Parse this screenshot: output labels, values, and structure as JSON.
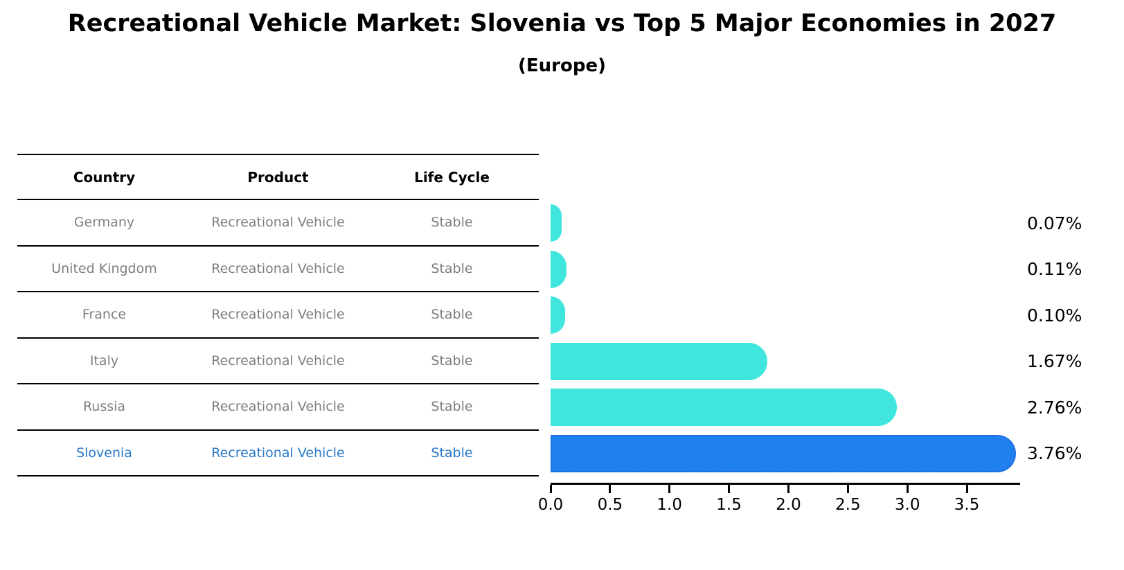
{
  "title": "Recreational Vehicle Market: Slovenia vs Top 5 Major Economies in 2027",
  "subtitle": "(Europe)",
  "table": {
    "headers": [
      "Country",
      "Product",
      "Life Cycle"
    ],
    "rows": [
      {
        "country": "Germany",
        "product": "Recreational Vehicle",
        "life_cycle": "Stable",
        "highlighted": false
      },
      {
        "country": "United Kingdom",
        "product": "Recreational Vehicle",
        "life_cycle": "Stable",
        "highlighted": false
      },
      {
        "country": "France",
        "product": "Recreational Vehicle",
        "life_cycle": "Stable",
        "highlighted": false
      },
      {
        "country": "Italy",
        "product": "Recreational Vehicle",
        "life_cycle": "Stable",
        "highlighted": false
      },
      {
        "country": "Russia",
        "product": "Recreational Vehicle",
        "life_cycle": "Stable",
        "highlighted": false
      },
      {
        "country": "Slovenia",
        "product": "Recreational Vehicle",
        "life_cycle": "Stable",
        "highlighted": true
      }
    ]
  },
  "chart_data": {
    "type": "bar",
    "orientation": "horizontal",
    "title": "Recreational Vehicle Market: Slovenia vs Top 5 Major Economies in 2027",
    "subtitle": "(Europe)",
    "categories": [
      "Germany",
      "United Kingdom",
      "France",
      "Italy",
      "Russia",
      "Slovenia"
    ],
    "values": [
      0.07,
      0.11,
      0.1,
      1.67,
      2.76,
      3.76
    ],
    "value_labels": [
      "0.07%",
      "0.11%",
      "0.10%",
      "1.67%",
      "2.76%",
      "3.76%"
    ],
    "highlight_index": 5,
    "x_tick_labels": [
      "0.0",
      "0.5",
      "1.0",
      "1.5",
      "2.0",
      "2.5",
      "3.0",
      "3.5"
    ],
    "x_ticks": [
      0.0,
      0.5,
      1.0,
      1.5,
      2.0,
      2.5,
      3.0,
      3.5
    ],
    "xlim": [
      0,
      3.948
    ],
    "grid": false,
    "legend": false
  },
  "colors": {
    "bar": "#40e6dd",
    "highlight_bar": "#2180f0",
    "highlight_border": "#1e63d6",
    "highlight_text": "#2a79c7",
    "table_text": "#7e7e7e",
    "axis": "#000000",
    "background": "#ffffff"
  }
}
